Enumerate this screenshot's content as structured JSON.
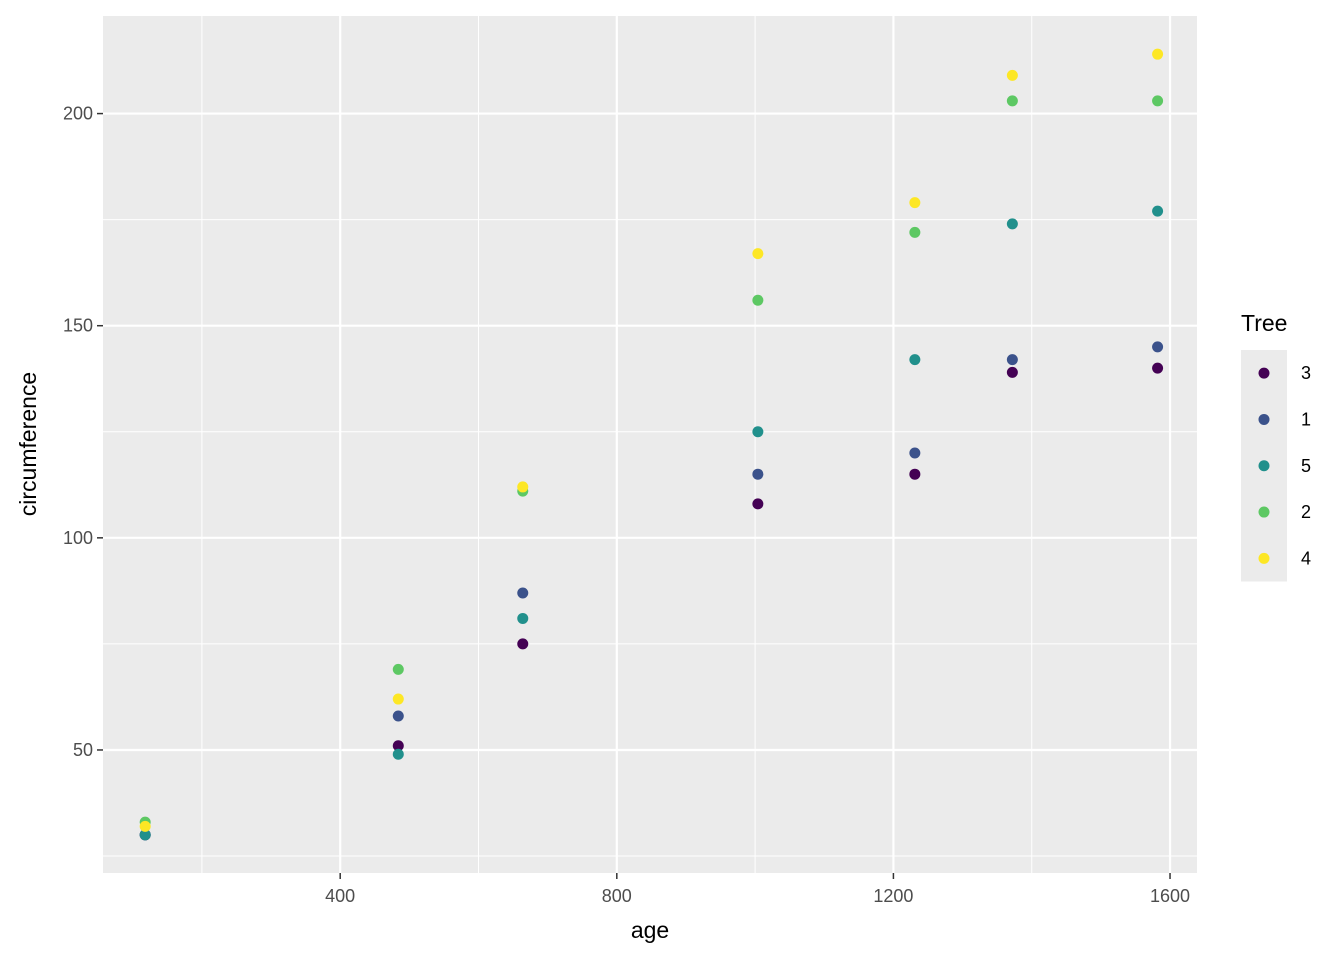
{
  "chart_data": {
    "type": "scatter",
    "xlabel": "age",
    "ylabel": "circumference",
    "xlim": [
      57,
      1639
    ],
    "ylim": [
      21,
      223
    ],
    "x_ticks": [
      400,
      800,
      1200,
      1600
    ],
    "x_minor": [
      200,
      600,
      1000,
      1400
    ],
    "y_ticks": [
      50,
      100,
      150,
      200
    ],
    "y_minor": [
      25,
      75,
      125,
      175
    ],
    "grid": true,
    "legend": {
      "title": "Tree",
      "placement": "right",
      "entries": [
        "3",
        "1",
        "5",
        "2",
        "4"
      ]
    },
    "colors": {
      "3": "#440154",
      "1": "#3b528b",
      "5": "#21908c",
      "2": "#5dc863",
      "4": "#fde725"
    },
    "panel_background": "#ebebeb",
    "grid_color": "#ffffff",
    "x": [
      118,
      484,
      664,
      1004,
      1231,
      1372,
      1582
    ],
    "series": [
      {
        "name": "3",
        "values": [
          30,
          51,
          75,
          108,
          115,
          139,
          140
        ]
      },
      {
        "name": "1",
        "values": [
          30,
          58,
          87,
          115,
          120,
          142,
          145
        ]
      },
      {
        "name": "5",
        "values": [
          30,
          49,
          81,
          125,
          142,
          174,
          177
        ]
      },
      {
        "name": "2",
        "values": [
          33,
          69,
          111,
          156,
          172,
          203,
          203
        ]
      },
      {
        "name": "4",
        "values": [
          32,
          62,
          112,
          167,
          179,
          209,
          214
        ]
      }
    ]
  }
}
